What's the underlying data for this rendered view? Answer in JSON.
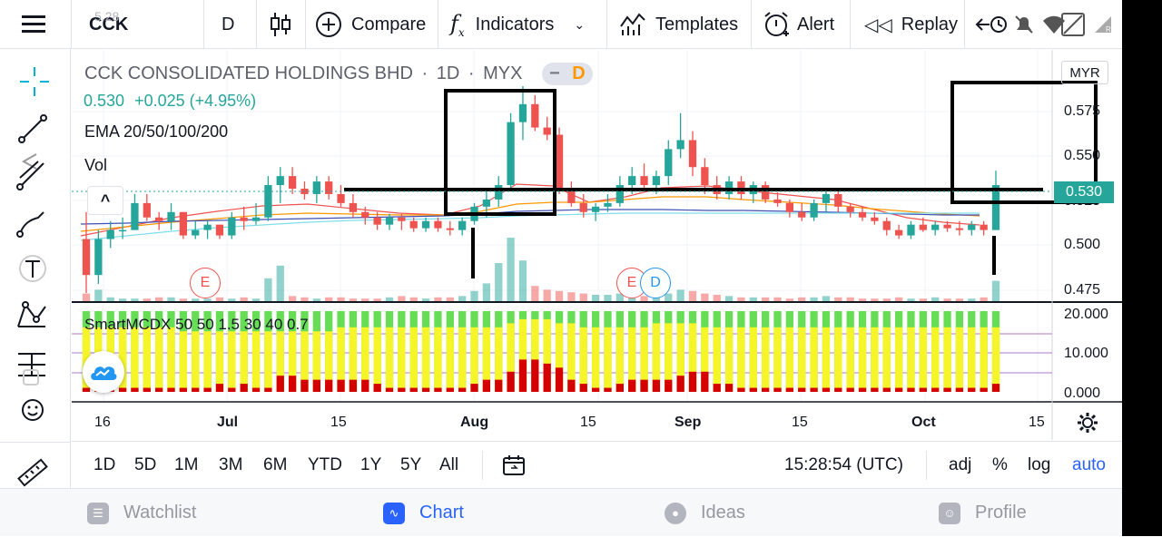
{
  "toolbar": {
    "symbol": "CCK",
    "symbol_ghost": "5.28",
    "interval": "D",
    "compare": "Compare",
    "indicators": "Indicators",
    "templates": "Templates",
    "alert": "Alert",
    "replay": "Replay"
  },
  "legend": {
    "title": "CCK CONSOLIDATED HOLDINGS BHD",
    "sep1": "·",
    "interval": "1D",
    "sep2": "·",
    "exchange": "MYX",
    "minus": "−",
    "badge": "D",
    "price": "0.530",
    "change": "+0.025 (+4.95%)",
    "ema": "EMA 20/50/100/200",
    "vol": "Vol",
    "collapse": "^"
  },
  "price_scale": {
    "currency": "MYR",
    "ticks": [
      "0.575",
      "0.550",
      "0.525",
      "0.500",
      "0.475"
    ],
    "last_price": "0.530"
  },
  "indicator_pane": {
    "label": "SmartMCDX 50 50 1.5 30 40 0.7",
    "ticks": [
      "20.000",
      "10.000",
      "0.000"
    ]
  },
  "time_axis": {
    "ticks": [
      "16",
      "Jul",
      "15",
      "Aug",
      "15",
      "Sep",
      "15",
      "Oct",
      "15"
    ]
  },
  "events": {
    "e1": "E",
    "e2": "E",
    "d1": "D"
  },
  "period_bar": {
    "ranges": [
      "1D",
      "5D",
      "1M",
      "3M",
      "6M",
      "YTD",
      "1Y",
      "5Y",
      "All"
    ],
    "time": "15:28:54 (UTC)",
    "adj": "adj",
    "percent": "%",
    "log": "log",
    "auto": "auto"
  },
  "bottom_nav": {
    "watchlist": "Watchlist",
    "chart": "Chart",
    "ideas": "Ideas",
    "profile": "Profile"
  },
  "colors": {
    "up": "#26a69a",
    "down": "#ef5350",
    "accent": "#2962ff",
    "badge": "#ff9800"
  },
  "chart_data": {
    "type": "candlestick",
    "title": "CCK CONSOLIDATED HOLDINGS BHD",
    "ylim": [
      0.47,
      0.585
    ],
    "last_price": 0.53,
    "ohlc": [
      [
        0.5,
        0.515,
        0.47,
        0.48
      ],
      [
        0.48,
        0.505,
        0.475,
        0.5
      ],
      [
        0.5,
        0.51,
        0.495,
        0.505
      ],
      [
        0.505,
        0.512,
        0.5,
        0.505
      ],
      [
        0.505,
        0.525,
        0.505,
        0.52
      ],
      [
        0.52,
        0.525,
        0.51,
        0.512
      ],
      [
        0.512,
        0.515,
        0.505,
        0.51
      ],
      [
        0.51,
        0.52,
        0.505,
        0.515
      ],
      [
        0.515,
        0.515,
        0.5,
        0.502
      ],
      [
        0.502,
        0.51,
        0.5,
        0.505
      ],
      [
        0.505,
        0.51,
        0.5,
        0.508
      ],
      [
        0.508,
        0.508,
        0.5,
        0.502
      ],
      [
        0.502,
        0.515,
        0.5,
        0.512
      ],
      [
        0.512,
        0.518,
        0.505,
        0.51
      ],
      [
        0.51,
        0.52,
        0.508,
        0.512
      ],
      [
        0.512,
        0.535,
        0.51,
        0.53
      ],
      [
        0.53,
        0.54,
        0.52,
        0.535
      ],
      [
        0.535,
        0.54,
        0.525,
        0.528
      ],
      [
        0.528,
        0.532,
        0.522,
        0.525
      ],
      [
        0.525,
        0.535,
        0.52,
        0.532
      ],
      [
        0.532,
        0.535,
        0.522,
        0.525
      ],
      [
        0.525,
        0.53,
        0.518,
        0.52
      ],
      [
        0.52,
        0.525,
        0.512,
        0.515
      ],
      [
        0.515,
        0.518,
        0.508,
        0.512
      ],
      [
        0.512,
        0.515,
        0.505,
        0.508
      ],
      [
        0.508,
        0.514,
        0.505,
        0.512
      ],
      [
        0.512,
        0.514,
        0.505,
        0.51
      ],
      [
        0.51,
        0.512,
        0.504,
        0.506
      ],
      [
        0.506,
        0.512,
        0.504,
        0.51
      ],
      [
        0.51,
        0.512,
        0.504,
        0.506
      ],
      [
        0.506,
        0.51,
        0.502,
        0.505
      ],
      [
        0.505,
        0.512,
        0.502,
        0.51
      ],
      [
        0.51,
        0.52,
        0.508,
        0.518
      ],
      [
        0.518,
        0.528,
        0.512,
        0.522
      ],
      [
        0.522,
        0.535,
        0.518,
        0.53
      ],
      [
        0.53,
        0.57,
        0.528,
        0.565
      ],
      [
        0.565,
        0.585,
        0.555,
        0.575
      ],
      [
        0.575,
        0.58,
        0.56,
        0.562
      ],
      [
        0.562,
        0.568,
        0.555,
        0.558
      ],
      [
        0.558,
        0.562,
        0.525,
        0.528
      ],
      [
        0.528,
        0.532,
        0.518,
        0.52
      ],
      [
        0.52,
        0.525,
        0.512,
        0.515
      ],
      [
        0.515,
        0.52,
        0.51,
        0.518
      ],
      [
        0.518,
        0.525,
        0.515,
        0.52
      ],
      [
        0.52,
        0.535,
        0.518,
        0.53
      ],
      [
        0.53,
        0.54,
        0.525,
        0.535
      ],
      [
        0.535,
        0.542,
        0.528,
        0.53
      ],
      [
        0.53,
        0.538,
        0.525,
        0.535
      ],
      [
        0.535,
        0.555,
        0.53,
        0.55
      ],
      [
        0.55,
        0.57,
        0.545,
        0.555
      ],
      [
        0.555,
        0.56,
        0.535,
        0.54
      ],
      [
        0.54,
        0.545,
        0.525,
        0.53
      ],
      [
        0.53,
        0.535,
        0.522,
        0.525
      ],
      [
        0.525,
        0.535,
        0.522,
        0.532
      ],
      [
        0.532,
        0.535,
        0.522,
        0.525
      ],
      [
        0.525,
        0.532,
        0.52,
        0.53
      ],
      [
        0.53,
        0.532,
        0.52,
        0.522
      ],
      [
        0.522,
        0.526,
        0.518,
        0.52
      ],
      [
        0.52,
        0.522,
        0.512,
        0.515
      ],
      [
        0.515,
        0.52,
        0.51,
        0.512
      ],
      [
        0.512,
        0.522,
        0.51,
        0.52
      ],
      [
        0.52,
        0.528,
        0.515,
        0.525
      ],
      [
        0.525,
        0.528,
        0.515,
        0.518
      ],
      [
        0.518,
        0.52,
        0.512,
        0.515
      ],
      [
        0.515,
        0.518,
        0.51,
        0.512
      ],
      [
        0.512,
        0.515,
        0.508,
        0.51
      ],
      [
        0.51,
        0.512,
        0.502,
        0.505
      ],
      [
        0.505,
        0.508,
        0.5,
        0.502
      ],
      [
        0.502,
        0.51,
        0.5,
        0.508
      ],
      [
        0.508,
        0.512,
        0.504,
        0.505
      ],
      [
        0.505,
        0.51,
        0.502,
        0.508
      ],
      [
        0.508,
        0.51,
        0.504,
        0.506
      ],
      [
        0.506,
        0.51,
        0.502,
        0.505
      ],
      [
        0.505,
        0.51,
        0.502,
        0.508
      ],
      [
        0.508,
        0.51,
        0.502,
        0.505
      ],
      [
        0.505,
        0.538,
        0.505,
        0.53
      ]
    ],
    "volume": [
      6,
      9,
      3,
      2,
      2,
      2,
      3,
      3,
      2,
      2,
      2,
      3,
      2,
      3,
      2,
      18,
      28,
      4,
      3,
      2,
      3,
      3,
      2,
      2,
      2,
      3,
      4,
      3,
      2,
      3,
      3,
      4,
      8,
      14,
      30,
      50,
      32,
      12,
      9,
      8,
      7,
      6,
      5,
      5,
      6,
      5,
      4,
      4,
      6,
      9,
      8,
      6,
      5,
      4,
      3,
      3,
      3,
      3,
      2,
      3,
      3,
      4,
      3,
      3,
      2,
      2,
      2,
      3,
      2,
      2,
      3,
      2,
      2,
      2,
      3,
      16
    ],
    "indicator": {
      "name": "SmartMCDX 50 50 1.5 30 40 0.7",
      "ylim": [
        0,
        20
      ],
      "red": [
        1,
        2,
        1,
        1,
        1,
        1,
        1,
        1,
        1,
        1,
        1,
        2,
        1,
        2,
        1,
        1,
        4,
        4,
        3,
        3,
        3,
        3,
        3,
        3,
        2,
        1,
        1,
        1,
        1,
        1,
        1,
        1,
        2,
        3,
        3,
        5,
        8,
        8,
        7,
        6,
        3,
        2,
        1,
        1,
        2,
        3,
        3,
        3,
        3,
        4,
        5,
        5,
        2,
        2,
        1,
        1,
        1,
        1,
        1,
        1,
        1,
        1,
        1,
        1,
        1,
        1,
        1,
        1,
        1,
        1,
        1,
        1,
        1,
        1,
        1,
        2
      ],
      "yellow": [
        16,
        16,
        16,
        16,
        16,
        16,
        16,
        16,
        15,
        15,
        15,
        15,
        15,
        15,
        15,
        15,
        15,
        15,
        15,
        15,
        15,
        16,
        16,
        16,
        16,
        16,
        16,
        16,
        16,
        16,
        16,
        16,
        16,
        16,
        16,
        17,
        18,
        18,
        18,
        17,
        17,
        16,
        16,
        16,
        16,
        16,
        16,
        17,
        17,
        17,
        17,
        16,
        16,
        16,
        16,
        16,
        16,
        16,
        16,
        16,
        16,
        16,
        16,
        16,
        16,
        16,
        16,
        16,
        16,
        16,
        16,
        16,
        16,
        16,
        16,
        16
      ]
    }
  }
}
